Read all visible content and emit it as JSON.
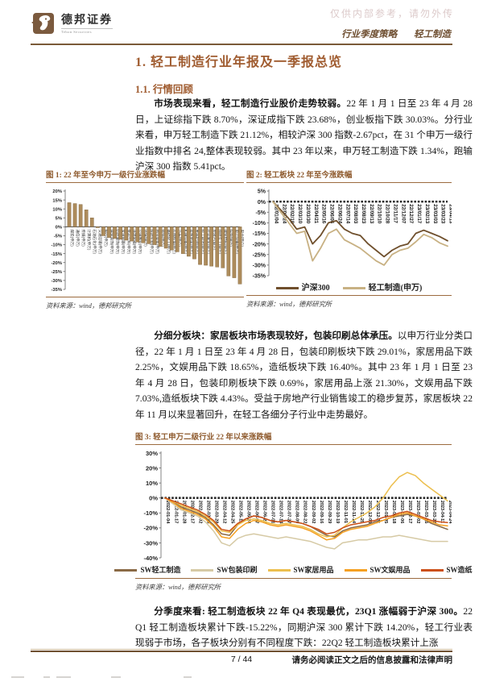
{
  "header": {
    "logo_cn": "德邦证券",
    "logo_en": "Tebon Securities",
    "watermark": "仅供内部参考，请勿外传",
    "category": "行业季度策略",
    "industry": "轻工制造"
  },
  "title": "1. 轻工制造行业年报及一季报总览",
  "section": "1.1. 行情回顾",
  "paragraphs": {
    "p1_lead": "市场表现来看，轻工制造行业股价走势较弱。",
    "p1_rest": "22 年 1 月 1 日至 23 年 4 月 28 日，上证综指下跌 8.70%，深证成指下跌 23.68%，创业板指下跌 30.03%。分行业来看，申万轻工制造下跌 21.12%，相较沪深 300 指数-2.67pct，在 31 个申万一级行业指数中排名 24,整体表现较弱。其中 23 年以来，申万轻工制造下跌 1.34%，跑输沪深 300 指数 5.41pct。",
    "p2_lead": "分细分板块：家居板块市场表现较好，包装印刷总体承压。",
    "p2_rest": "以申万行业分类口径，22 年 1 月 1 日至 23 年 4 月 28 日，包装印刷板块下跌 29.01%，家居用品下跌 2.25%，文娱用品下跌 18.65%，造纸板块下跌 16.40%。其中 23 年 1 月 1 日至 23 年 4 月 28 日，包装印刷板块下跌 0.69%，家居用品上涨 21.30%，文娱用品下跌 7.03%,造纸板块下跌 4.43%。受益于房地产行业销售竣工的稳步复苏，家居板块 22 年 11 月以来显著回升，在轻工各细分子行业中走势最好。",
    "p3_lead": "分季度来看: 轻工制造板块 22 年 Q4 表现最优，23Q1 涨幅弱于沪深 300。",
    "p3_rest": "22 Q1 轻工制造板块累计下跌-15.22%，同期沪深 300 累计下跌 14.20%，轻工行业表现弱于市场，各子板块分别有不同程度下跌：22Q2 轻工制造板块累计上涨"
  },
  "figures": [
    {
      "title": "图 1: 22 年至今申万一级行业涨跌幅",
      "source": "资料来源：wind，德邦研究所"
    },
    {
      "title": "图 2: 轻工板块 22 年至今涨跌幅",
      "source": "资料来源：wind，德邦研究所"
    },
    {
      "title": "图 3: 轻工申万二级行业 22 年以来涨跌幅",
      "source": "资料来源：wind，德邦研究所"
    }
  ],
  "footer": {
    "page": "7 / 44",
    "disclaimer": "请务必阅读正文之后的信息披露和法律声明"
  },
  "chart_data": [
    {
      "type": "bar",
      "title": "图 1: 22 年至今申万一级行业涨跌幅",
      "ylabel": "",
      "xlabel": "",
      "ylim": [
        -35,
        20
      ],
      "ytick_step": 5,
      "grid": false,
      "bar_color": "#ad8c5c",
      "categories": [
        "煤炭(申万)",
        "通信(申万)",
        "传媒(申万)",
        "计算机(申万)",
        "石油石化(申万)",
        "交通运输(申万)",
        "银行(申万)",
        "建筑装饰(申万)",
        "纺织服饰(申万)",
        "家用电器(申万)",
        "食品饮料(申万)",
        "非银金融(申万)",
        "公用事业(申万)",
        "环保(申万)",
        "医药生物(申万)",
        "商贸零售(申万)",
        "钢铁(申万)",
        "基础化工(申万)",
        "农林牧渔(申万)",
        "汽车(申万)",
        "机械设备(申万)",
        "有色金属(申万)",
        "美容护理(申万)",
        "轻工制造(申万)",
        "社会服务(申万)",
        "房地产(申万)",
        "国防军工(申万)",
        "建筑材料(申万)",
        "综合(申万)",
        "电力设备(申万)",
        "电子(申万)"
      ],
      "values": [
        13.5,
        13,
        12.5,
        9.5,
        5,
        -0.5,
        -5,
        -6,
        -6.5,
        -7,
        -7.5,
        -8,
        -8.5,
        -9,
        -9.5,
        -10,
        -11,
        -12,
        -13,
        -14,
        -15,
        -16.5,
        -18,
        -21.1,
        -21.5,
        -22,
        -22.5,
        -23,
        -27.5,
        -28.5,
        -32
      ]
    },
    {
      "type": "line",
      "title": "图 2: 轻工板块 22 年至今涨跌幅",
      "ylabel": "",
      "xlabel": "",
      "ylim": [
        -35,
        5
      ],
      "ytick_step": 5,
      "grid": false,
      "legend_position": "bottom",
      "x": [
        "22/01/04",
        "22/01/24",
        "22/02/18",
        "22/03/10",
        "22/03/30",
        "22/04/21",
        "22/05/16",
        "22/06/06",
        "22/06/24",
        "22/07/14",
        "22/08/03",
        "22/08/23",
        "22/09/13",
        "22/10/10",
        "22/10/28",
        "22/11/17",
        "22/12/07",
        "22/12/27",
        "23/01/17",
        "23/02/13",
        "23/03/03",
        "23/03/23",
        "23/04/13"
      ],
      "series": [
        {
          "name": "沪深300",
          "color": "#6f4f2c",
          "values": [
            0,
            -4,
            -8,
            -13,
            -12,
            -20,
            -16,
            -10,
            -9,
            -13,
            -15,
            -16,
            -20,
            -23,
            -26,
            -23,
            -21,
            -20,
            -15,
            -13.5,
            -15,
            -16.5,
            -18.5
          ]
        },
        {
          "name": "轻工制造(申万)",
          "color": "#c8b183",
          "values": [
            0,
            -5,
            -10,
            -15,
            -14,
            -28,
            -22,
            -15,
            -13,
            -18,
            -20,
            -22,
            -25,
            -28,
            -30,
            -25,
            -23,
            -22,
            -19,
            -15.5,
            -17,
            -19.5,
            -21
          ]
        }
      ]
    },
    {
      "type": "line",
      "title": "图 3: 轻工申万二级行业 22 年以来涨跌幅",
      "ylabel": "",
      "xlabel": "",
      "ylim": [
        -40,
        30
      ],
      "ytick_step": 10,
      "grid": false,
      "legend_position": "bottom",
      "x": [
        "2022-01-04",
        "2022-01-17",
        "2022-01-28",
        "2022-02-17",
        "2022-03-02",
        "2022-03-15",
        "2022-03-28",
        "2022-04-12",
        "2022-04-25",
        "2022-05-11",
        "2022-05-24",
        "2022-06-07",
        "2022-06-20",
        "2022-07-01",
        "2022-07-14",
        "2022-07-27",
        "2022-08-09",
        "2022-08-22",
        "2022-09-02",
        "2022-09-16",
        "2022-09-29",
        "2022-10-19",
        "2022-11-01",
        "2022-11-14",
        "2022-11-25",
        "2022-12-08",
        "2022-12-21",
        "2023-01-05",
        "2023-01-18",
        "2023-02-06",
        "2023-02-17",
        "2023-03-02",
        "2023-03-15",
        "2023-03-28",
        "2023-04-11",
        "2023-04-24"
      ],
      "series": [
        {
          "name": "SW轻工制造",
          "color": "#8a6a46",
          "values": [
            0,
            -3,
            -6,
            -8,
            -10,
            -13,
            -18,
            -24,
            -25,
            -18,
            -14,
            -12,
            -13,
            -15,
            -16,
            -15,
            -16,
            -17,
            -19,
            -22,
            -25,
            -26,
            -22,
            -20,
            -19,
            -18,
            -16,
            -15,
            -13,
            -12,
            -11,
            -12,
            -14,
            -17,
            -19,
            -21
          ]
        },
        {
          "name": "SW包装印刷",
          "color": "#d6caa5",
          "values": [
            0,
            -4,
            -8,
            -10,
            -12,
            -16,
            -22,
            -30,
            -32,
            -27,
            -25,
            -24,
            -25,
            -26,
            -27,
            -26,
            -27,
            -28,
            -29,
            -31,
            -33,
            -34,
            -30,
            -29,
            -28,
            -28,
            -27,
            -26,
            -26,
            -25,
            -26,
            -27,
            -28,
            -29,
            -29,
            -29
          ]
        },
        {
          "name": "SW家居用品",
          "color": "#ecbf4e",
          "values": [
            0,
            -2,
            -5,
            -7,
            -9,
            -12,
            -16,
            -22,
            -23,
            -18,
            -15,
            -14,
            -15,
            -17,
            -18,
            -17,
            -18,
            -19,
            -21,
            -24,
            -26,
            -25,
            -20,
            -16,
            -13,
            -10,
            -6,
            0,
            8,
            14,
            17,
            15,
            10,
            6,
            2,
            -2
          ]
        },
        {
          "name": "SW文娱用品",
          "color": "#f5a021",
          "values": [
            0,
            -3,
            -7,
            -9,
            -11,
            -14,
            -19,
            -26,
            -27,
            -21,
            -17,
            -15,
            -16,
            -18,
            -19,
            -18,
            -19,
            -20,
            -22,
            -25,
            -28,
            -27,
            -23,
            -21,
            -20,
            -19,
            -17,
            -15,
            -13,
            -11,
            -10,
            -12,
            -14,
            -16,
            -18,
            -18.7
          ]
        },
        {
          "name": "SW造纸",
          "color": "#cc5018",
          "values": [
            0,
            -2,
            -4,
            -6,
            -8,
            -11,
            -15,
            -21,
            -22,
            -17,
            -14,
            -12,
            -13,
            -15,
            -16,
            -15,
            -16,
            -17,
            -19,
            -21,
            -24,
            -23,
            -20,
            -18,
            -17,
            -16,
            -15,
            -13,
            -12,
            -10,
            -9,
            -11,
            -13,
            -15,
            -16,
            -16.4
          ]
        }
      ]
    }
  ]
}
